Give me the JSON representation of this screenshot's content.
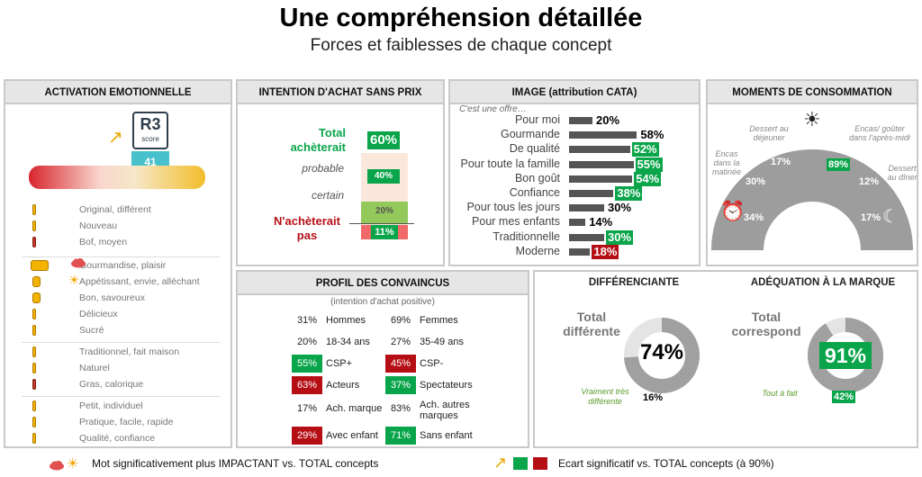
{
  "title": "Une compréhension détaillée",
  "subtitle": "Forces et faiblesses de chaque concept",
  "activation": {
    "header": "ACTIVATION EMOTIONNELLE",
    "logo_text": "R3",
    "logo_sub": "score",
    "score": "41",
    "items": [
      {
        "label": "Original, différent",
        "level": "low",
        "color": "#f2b400"
      },
      {
        "label": "Nouveau",
        "level": "low",
        "color": "#f2b400"
      },
      {
        "label": "Bof, moyen",
        "level": "low",
        "color": "#c0392b"
      },
      {
        "label": "Gourmandise, plaisir",
        "level": "high",
        "color": "#f2b400"
      },
      {
        "label": "Appétissant, envie, alléchant",
        "level": "mid",
        "color": "#f2b400"
      },
      {
        "label": "Bon, savoureux",
        "level": "mid",
        "color": "#f2b400"
      },
      {
        "label": "Délicieux",
        "level": "low",
        "color": "#f2b400"
      },
      {
        "label": "Sucré",
        "level": "low",
        "color": "#f2b400"
      },
      {
        "label": "Traditionnel, fait maison",
        "level": "low",
        "color": "#f2b400"
      },
      {
        "label": "Naturel",
        "level": "low",
        "color": "#f2b400"
      },
      {
        "label": "Gras, calorique",
        "level": "low",
        "color": "#c0392b"
      },
      {
        "label": "Petit, individuel",
        "level": "low",
        "color": "#f2b400"
      },
      {
        "label": "Pratique, facile, rapide",
        "level": "low",
        "color": "#f2b400"
      },
      {
        "label": "Qualité, confiance",
        "level": "low",
        "color": "#f2b400"
      }
    ]
  },
  "intention": {
    "header": "INTENTION D'ACHAT SANS PRIX",
    "total_label": "Total achèterait",
    "total_value": "60%",
    "probable_label": "probable",
    "probable_value": "40%",
    "certain_label": "certain",
    "certain_value": "20%",
    "non_label": "N'achèterait pas",
    "non_value": "11%"
  },
  "image": {
    "header": "IMAGE (attribution CATA)",
    "intro": "C'est une offre…",
    "items": [
      {
        "label": "Pour moi",
        "value": 20,
        "text": "20%",
        "style": ""
      },
      {
        "label": "Gourmande",
        "value": 58,
        "text": "58%",
        "style": ""
      },
      {
        "label": "De qualité",
        "value": 52,
        "text": "52%",
        "style": "g"
      },
      {
        "label": "Pour toute la famille",
        "value": 55,
        "text": "55%",
        "style": "g"
      },
      {
        "label": "Bon goût",
        "value": 54,
        "text": "54%",
        "style": "g"
      },
      {
        "label": "Confiance",
        "value": 38,
        "text": "38%",
        "style": "g"
      },
      {
        "label": "Pour tous les jours",
        "value": 30,
        "text": "30%",
        "style": ""
      },
      {
        "label": "Pour mes enfants",
        "value": 14,
        "text": "14%",
        "style": ""
      },
      {
        "label": "Traditionnelle",
        "value": 30,
        "text": "30%",
        "style": "g"
      },
      {
        "label": "Moderne",
        "value": 18,
        "text": "18%",
        "style": "r"
      }
    ]
  },
  "moments": {
    "header": "MOMENTS DE CONSOMMATION",
    "labels": {
      "matinee": "Encas dans la matinée",
      "dejeuner": "Dessert au déjeuner",
      "apresmidi": "Encas/ goûter dans l'après-midi",
      "diner": "Dessert au dîner"
    },
    "values": {
      "v34": "34%",
      "v30": "30%",
      "v17a": "17%",
      "v89": "89%",
      "v12": "12%",
      "v17b": "17%"
    }
  },
  "profil": {
    "header": "PROFIL DES CONVAINCUS",
    "note": "(intention d'achat positive)",
    "rows": [
      {
        "lv": "31%",
        "ll": "Hommes",
        "ls": "",
        "rv": "69%",
        "rl": "Femmes",
        "rs": ""
      },
      {
        "lv": "20%",
        "ll": "18-34 ans",
        "ls": "",
        "rv": "27%",
        "rl": "35-49 ans",
        "rs": ""
      },
      {
        "lv": "55%",
        "ll": "CSP+",
        "ls": "g",
        "rv": "45%",
        "rl": "CSP-",
        "rs": "r"
      },
      {
        "lv": "63%",
        "ll": "Acteurs",
        "ls": "r",
        "rv": "37%",
        "rl": "Spectateurs",
        "rs": "g"
      },
      {
        "lv": "17%",
        "ll": "Ach. marque",
        "ls": "",
        "rv": "83%",
        "rl": "Ach. autres marques",
        "rs": ""
      },
      {
        "lv": "29%",
        "ll": "Avec enfant",
        "ls": "r",
        "rv": "71%",
        "rl": "Sans enfant",
        "rs": "g"
      }
    ]
  },
  "diff": {
    "header": "DIFFÉRENCIANTE",
    "total_label": "Total différente",
    "value": "74%",
    "value_num": 74,
    "sub_label": "Vraiment très différente",
    "sub_value": "16%"
  },
  "adeq": {
    "header": "ADÉQUATION À LA MARQUE",
    "total_label": "Total correspond",
    "value": "91%",
    "value_num": 91,
    "sub_label": "Tout à fait",
    "sub_value": "42%"
  },
  "legend": {
    "left": "Mot significativement plus IMPACTANT vs. TOTAL concepts",
    "right": "Ecart significatif vs. TOTAL concepts (à 90%)"
  },
  "colors": {
    "green": "#0aa54a",
    "red": "#b50f15",
    "gray": "#9a9a9a"
  }
}
